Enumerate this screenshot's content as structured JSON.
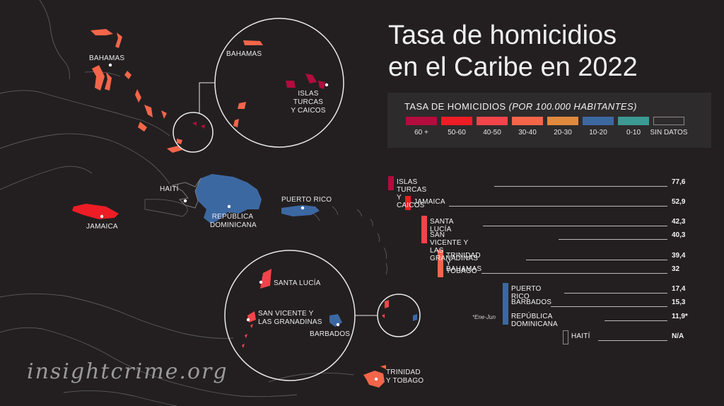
{
  "title": {
    "line1": "Tasa de homicidios",
    "line2": "en el Caribe en 2022"
  },
  "legend": {
    "heading_main": "TASA DE HOMICIDIOS ",
    "heading_italic": "(POR 100.000 HABITANTES)",
    "items": [
      {
        "label": "60 +",
        "color": "#b30c3e"
      },
      {
        "label": "50-60",
        "color": "#ee1c25"
      },
      {
        "label": "40-50",
        "color": "#f2444a"
      },
      {
        "label": "30-40",
        "color": "#f4654a"
      },
      {
        "label": "20-30",
        "color": "#e08a3e"
      },
      {
        "label": "10-20",
        "color": "#3c68a2"
      },
      {
        "label": "0-10",
        "color": "#3b9a93"
      },
      {
        "label": "SIN DATOS",
        "color": "none"
      }
    ]
  },
  "ranking": [
    {
      "country": "ISLAS TURCAS Y CAICOS",
      "value": "77,6",
      "color": "#b30c3e"
    },
    {
      "country": "JAMAICA",
      "value": "52,9",
      "color": "#ee1c25"
    },
    {
      "country": "SANTA LUCÍA",
      "value": "42,3",
      "color": "#f2444a"
    },
    {
      "country": "SAN VICENTE Y LAS GRANADINAS",
      "value": "40,3",
      "color": "#f2444a"
    },
    {
      "country": "TRINIDAD Y TOBAGO",
      "value": "39,4",
      "color": "#f4654a"
    },
    {
      "country": "BAHAMAS",
      "value": "32",
      "color": "#f4654a"
    },
    {
      "country": "PUERTO RICO",
      "value": "17,4",
      "color": "#3c68a2"
    },
    {
      "country": "BARBADOS",
      "value": "15,3",
      "color": "#3c68a2"
    },
    {
      "country": "REPÚBLICA DOMINICANA",
      "value": "11,9*",
      "color": "#3c68a2"
    },
    {
      "country": "HAITÍ",
      "value": "N/A",
      "color": "none"
    }
  ],
  "footnote": "*Ene-Jun",
  "map_labels": {
    "bahamas": "BAHAMAS",
    "bahamas_inset": "BAHAMAS",
    "turks_line1": "ISLAS TURCAS",
    "turks_line2": "Y CAICOS",
    "haiti": "HAITÍ",
    "dr_line1": "REPÚBLICA",
    "dr_line2": "DOMINICANA",
    "puerto_rico": "PUERTO RICO",
    "jamaica": "JAMAICA",
    "santa_lucia": "SANTA LUCÍA",
    "svg_line1": "SAN VICENTE Y",
    "svg_line2": "LAS GRANADINAS",
    "barbados": "BARBADOS",
    "trinidad_line1": "TRINIDAD",
    "trinidad_line2": "Y TOBAGO"
  },
  "watermark": "insightcrime.org"
}
